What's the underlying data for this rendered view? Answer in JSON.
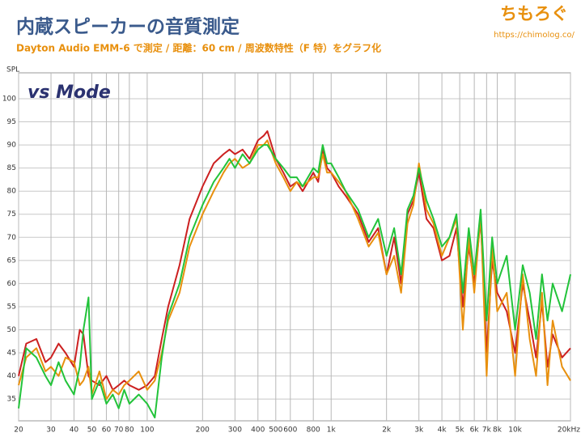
{
  "header": {
    "brand": "ちもろぐ",
    "url": "https://chimolog.co/"
  },
  "chart_data": {
    "type": "line",
    "title": "内蔵スピーカーの音質測定",
    "subtitle": "Dayton Audio EMM-6 で測定 / 距離：60 cm / 周波数特性（F 特）をグラフ化",
    "annotation": "vs Mode",
    "ylabel": "SPL",
    "xscale": "log",
    "grid": true,
    "x": [
      20,
      22,
      25,
      28,
      30,
      33,
      36,
      40,
      43,
      45,
      48,
      50,
      55,
      60,
      65,
      70,
      75,
      80,
      90,
      100,
      110,
      120,
      130,
      150,
      170,
      200,
      230,
      260,
      280,
      300,
      330,
      360,
      400,
      430,
      450,
      500,
      550,
      600,
      650,
      700,
      800,
      850,
      900,
      950,
      1000,
      1100,
      1200,
      1400,
      1600,
      1800,
      2000,
      2200,
      2400,
      2600,
      2800,
      3000,
      3300,
      3600,
      4000,
      4400,
      4800,
      5200,
      5600,
      6000,
      6500,
      7000,
      7500,
      8000,
      9000,
      10000,
      11000,
      12000,
      13000,
      14000,
      15000,
      16000,
      18000,
      20000
    ],
    "series": [
      {
        "color": "#cc2020",
        "values": [
          40,
          47,
          48,
          43,
          44,
          47,
          45,
          42,
          50,
          49,
          40,
          39,
          38,
          40,
          37,
          38,
          39,
          38,
          37,
          38,
          40,
          48,
          55,
          64,
          74,
          81,
          86,
          88,
          89,
          88,
          89,
          87,
          91,
          92,
          93,
          87,
          84,
          81,
          82,
          80,
          84,
          82,
          89,
          85,
          84,
          81,
          79,
          75,
          69,
          72,
          62,
          70,
          60,
          75,
          78,
          84,
          74,
          72,
          65,
          66,
          72,
          55,
          68,
          60,
          74,
          45,
          65,
          58,
          54,
          45,
          60,
          52,
          44,
          56,
          42,
          49,
          44,
          46
        ]
      },
      {
        "color": "#e8900e",
        "values": [
          38,
          44,
          46,
          41,
          42,
          40,
          44,
          43,
          38,
          39,
          42,
          36,
          41,
          35,
          37,
          36,
          38,
          39,
          41,
          37,
          39,
          45,
          52,
          58,
          68,
          75,
          80,
          84,
          86,
          87,
          85,
          86,
          90,
          90,
          91,
          86,
          83,
          80,
          82,
          81,
          83,
          83,
          88,
          84,
          84,
          82,
          80,
          74,
          68,
          71,
          62,
          66,
          58,
          73,
          77,
          86,
          76,
          73,
          66,
          70,
          74,
          50,
          70,
          58,
          75,
          40,
          68,
          54,
          58,
          40,
          62,
          48,
          40,
          58,
          38,
          52,
          42,
          39
        ]
      },
      {
        "color": "#22c33a",
        "values": [
          33,
          46,
          44,
          40,
          38,
          43,
          39,
          36,
          42,
          50,
          57,
          35,
          39,
          34,
          36,
          33,
          37,
          34,
          36,
          34,
          31,
          44,
          53,
          60,
          70,
          77,
          82,
          85,
          87,
          85,
          88,
          86,
          89,
          90,
          90,
          87,
          85,
          83,
          83,
          81,
          85,
          84,
          90,
          86,
          86,
          83,
          80,
          76,
          70,
          74,
          66,
          72,
          62,
          76,
          79,
          85,
          78,
          74,
          68,
          70,
          75,
          58,
          72,
          62,
          76,
          52,
          70,
          60,
          66,
          50,
          64,
          58,
          48,
          62,
          52,
          60,
          54,
          62
        ]
      }
    ],
    "xlim": [
      20,
      20000
    ],
    "xticks": [
      20,
      30,
      40,
      50,
      60,
      70,
      80,
      100,
      200,
      300,
      400,
      500,
      600,
      800,
      {
        "value": 1000,
        "label": "1k"
      },
      {
        "value": 2000,
        "label": "2k"
      },
      {
        "value": 3000,
        "label": "3k"
      },
      {
        "value": 4000,
        "label": "4k"
      },
      {
        "value": 5000,
        "label": "5k"
      },
      {
        "value": 6000,
        "label": "6k"
      },
      {
        "value": 7000,
        "label": "7k"
      },
      {
        "value": 8000,
        "label": "8k"
      },
      {
        "value": 10000,
        "label": "10k"
      },
      {
        "value": 20000,
        "label": "20kHz"
      }
    ],
    "ylim": [
      30.3,
      105.6
    ],
    "yticks": [
      35,
      40,
      45,
      50,
      55,
      60,
      65,
      70,
      75,
      80,
      85,
      90,
      95,
      100
    ]
  }
}
